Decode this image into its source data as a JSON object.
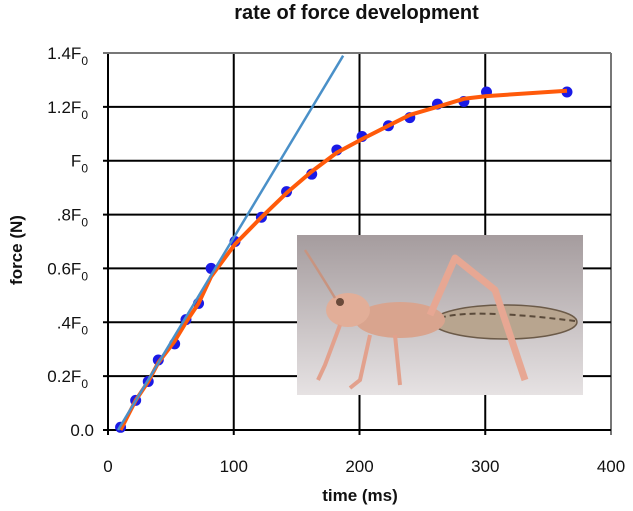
{
  "chart_data": {
    "type": "scatter",
    "title": "rate of force development",
    "xlabel": "time (ms)",
    "ylabel": "force (N)",
    "xlim": [
      0,
      400
    ],
    "ylim": [
      0,
      1.4
    ],
    "grid": true,
    "x_ticks": [
      {
        "v": 0,
        "label": "0"
      },
      {
        "v": 100,
        "label": "100"
      },
      {
        "v": 200,
        "label": "200"
      },
      {
        "v": 300,
        "label": "300"
      },
      {
        "v": 400,
        "label": "400"
      }
    ],
    "y_ticks": [
      {
        "v": 0,
        "label": "0.0",
        "sub": ""
      },
      {
        "v": 0.2,
        "label": "0.2F",
        "sub": "0"
      },
      {
        "v": 0.4,
        "label": ".4F",
        "sub": "0"
      },
      {
        "v": 0.6,
        "label": "0.6F",
        "sub": "0"
      },
      {
        "v": 0.8,
        "label": ".8F",
        "sub": "0"
      },
      {
        "v": 1.0,
        "label": "F",
        "sub": "0"
      },
      {
        "v": 1.2,
        "label": "1.2F",
        "sub": "0"
      },
      {
        "v": 1.4,
        "label": "1.4F",
        "sub": "0"
      }
    ],
    "series": [
      {
        "kind": "points",
        "color": "#1a1ae6",
        "x": [
          10,
          22,
          32,
          40,
          53,
          62,
          72,
          82,
          101,
          122,
          142,
          162,
          182,
          202,
          223,
          240,
          262,
          283,
          301,
          365
        ],
        "y": [
          0.01,
          0.11,
          0.18,
          0.26,
          0.32,
          0.41,
          0.47,
          0.6,
          0.7,
          0.79,
          0.885,
          0.95,
          1.04,
          1.09,
          1.13,
          1.16,
          1.21,
          1.22,
          1.255,
          1.255
        ]
      },
      {
        "kind": "fit-curve",
        "color": "#ff5a0a",
        "x": [
          10,
          22,
          32,
          40,
          53,
          62,
          72,
          82,
          101,
          122,
          142,
          162,
          182,
          202,
          223,
          240,
          262,
          283,
          301,
          365
        ],
        "y": [
          0.0,
          0.11,
          0.18,
          0.25,
          0.33,
          0.4,
          0.47,
          0.57,
          0.69,
          0.79,
          0.88,
          0.96,
          1.03,
          1.08,
          1.13,
          1.17,
          1.2,
          1.23,
          1.24,
          1.26
        ]
      },
      {
        "kind": "tangent-line",
        "color": "#4a90c8",
        "x": [
          8,
          187
        ],
        "y": [
          0,
          1.39
        ]
      }
    ]
  },
  "inset_image": {
    "description_icon": "grasshopper-photo"
  }
}
